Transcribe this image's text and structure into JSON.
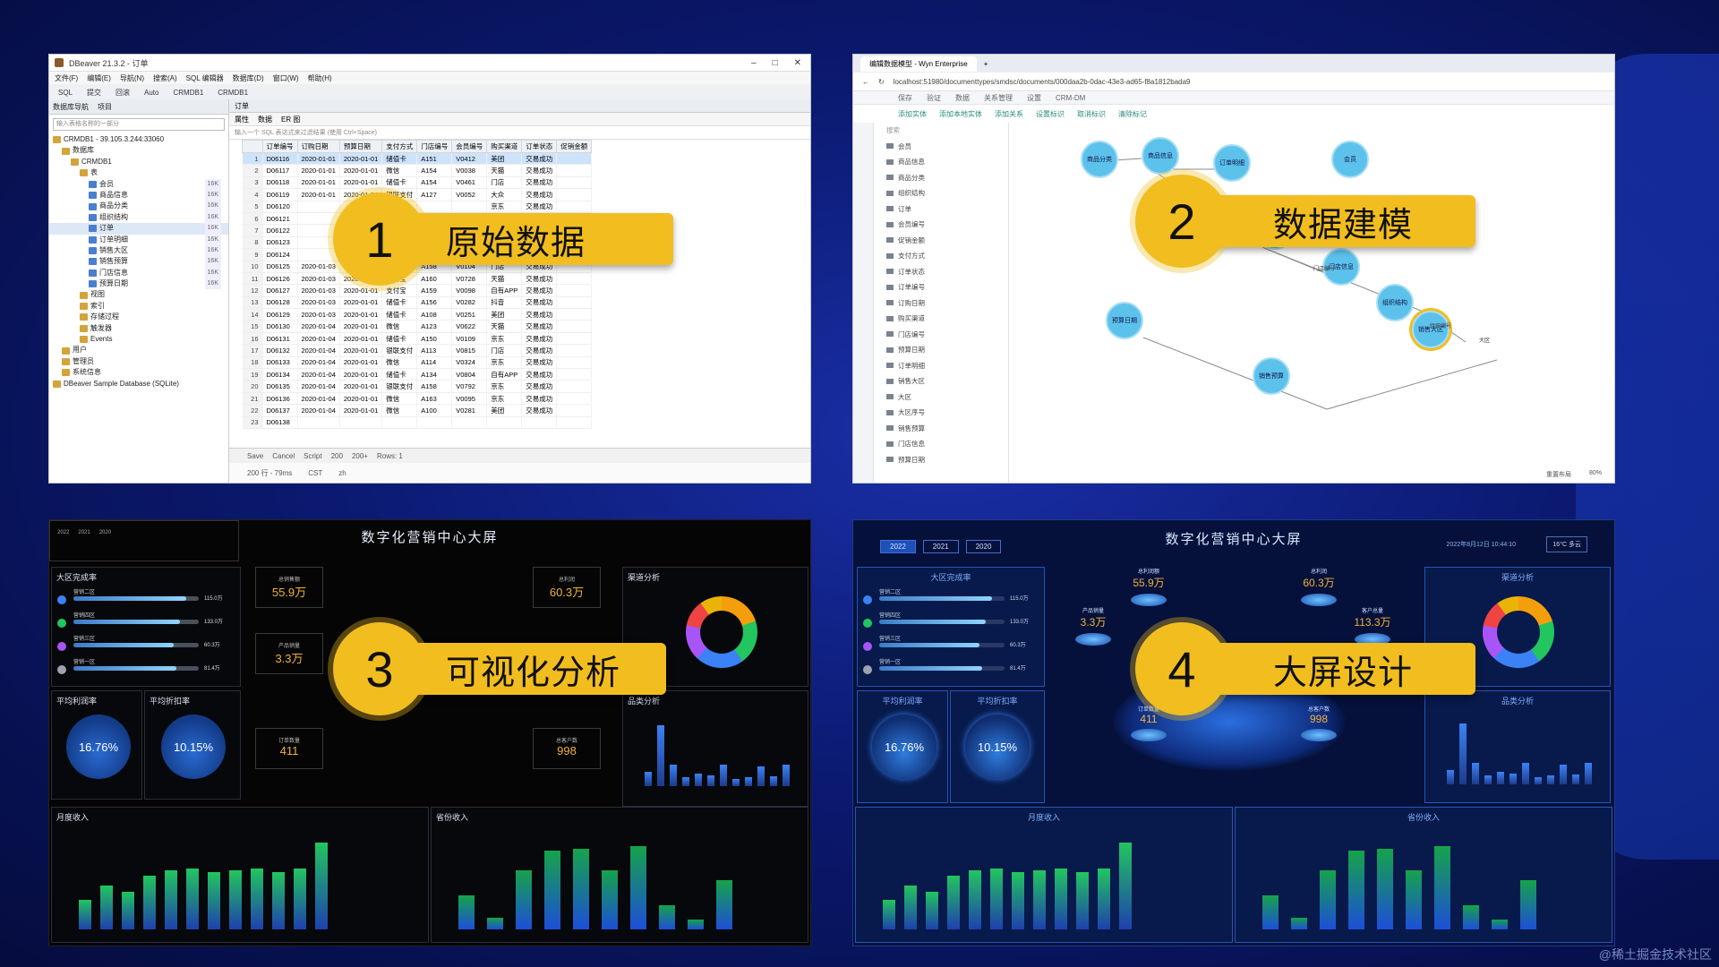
{
  "badges": [
    {
      "num": "1",
      "label": "原始数据"
    },
    {
      "num": "2",
      "label": "数据建模"
    },
    {
      "num": "3",
      "label": "可视化分析"
    },
    {
      "num": "4",
      "label": "大屏设计"
    }
  ],
  "dbeaver": {
    "title": "DBeaver 21.3.2 - 订单",
    "menu": [
      "文件(F)",
      "编辑(E)",
      "导航(N)",
      "搜索(A)",
      "SQL 编辑器",
      "数据库(D)",
      "窗口(W)",
      "帮助(H)"
    ],
    "toolbar": [
      "SQL",
      "提交",
      "回滚",
      "Auto",
      "CRMDB1",
      "CRMDB1"
    ],
    "nav_tabs": [
      "数据库导航",
      "项目"
    ],
    "nav_filter": "输入表格名称的一部分",
    "tree": [
      {
        "t": "CRMDB1 - 39.105.3.244:33060",
        "lvl": 0
      },
      {
        "t": "数据库",
        "lvl": 1
      },
      {
        "t": "CRMDB1",
        "lvl": 2
      },
      {
        "t": "表",
        "lvl": 3
      },
      {
        "t": "会员",
        "lvl": 4,
        "sz": "16K"
      },
      {
        "t": "商品信息",
        "lvl": 4,
        "sz": "16K"
      },
      {
        "t": "商品分类",
        "lvl": 4,
        "sz": "16K"
      },
      {
        "t": "组织结构",
        "lvl": 4,
        "sz": "16K"
      },
      {
        "t": "订单",
        "lvl": 4,
        "sz": "16K"
      },
      {
        "t": "订单明细",
        "lvl": 4,
        "sz": "16K"
      },
      {
        "t": "销售大区",
        "lvl": 4,
        "sz": "16K"
      },
      {
        "t": "销售预算",
        "lvl": 4,
        "sz": "16K"
      },
      {
        "t": "门店信息",
        "lvl": 4,
        "sz": "16K"
      },
      {
        "t": "预算日期",
        "lvl": 4,
        "sz": "16K"
      },
      {
        "t": "视图",
        "lvl": 3
      },
      {
        "t": "索引",
        "lvl": 3
      },
      {
        "t": "存储过程",
        "lvl": 3
      },
      {
        "t": "触发器",
        "lvl": 3
      },
      {
        "t": "Events",
        "lvl": 3
      },
      {
        "t": "用户",
        "lvl": 1
      },
      {
        "t": "管理员",
        "lvl": 1
      },
      {
        "t": "系统信息",
        "lvl": 1
      },
      {
        "t": "DBeaver Sample Database (SQLite)",
        "lvl": 0
      }
    ],
    "grid_tabs": [
      "订单"
    ],
    "grid_sub": [
      "属性",
      "数据",
      "ER 图"
    ],
    "filter_placeholder": "输入一个 SQL 表达式来过滤结果 (使用 Ctrl+Space)",
    "columns": [
      "订单编号",
      "订购日期",
      "预算日期",
      "支付方式",
      "门店编号",
      "会员编号",
      "购买渠道",
      "订单状态",
      "促销金额"
    ],
    "rows": [
      [
        "D06116",
        "2020-01-01",
        "2020-01-01",
        "储值卡",
        "A151",
        "V0412",
        "美团",
        "交易成功"
      ],
      [
        "D06117",
        "2020-01-01",
        "2020-01-01",
        "微信",
        "A154",
        "V0038",
        "天猫",
        "交易成功"
      ],
      [
        "D06118",
        "2020-01-01",
        "2020-01-01",
        "储值卡",
        "A154",
        "V0461",
        "门店",
        "交易成功"
      ],
      [
        "D06119",
        "2020-01-01",
        "2020-01-01",
        "银联支付",
        "A127",
        "V0052",
        "大众",
        "交易成功"
      ],
      [
        "D06120",
        "",
        "",
        "",
        "",
        "",
        "京东",
        "交易成功"
      ],
      [
        "D06121",
        "",
        "",
        "",
        "",
        "",
        "美团",
        "交易成功"
      ],
      [
        "D06122",
        "",
        "",
        "",
        "",
        "",
        "京东",
        "交易成功"
      ],
      [
        "D06123",
        "",
        "",
        "",
        "",
        "",
        "门店",
        "交易成功"
      ],
      [
        "D06124",
        "",
        "",
        "",
        "",
        "",
        "自有APP",
        "交易成功"
      ],
      [
        "D06125",
        "2020-01-03",
        "2020-01-01",
        "支付宝",
        "A158",
        "V0104",
        "门店",
        "交易成功"
      ],
      [
        "D06126",
        "2020-01-03",
        "2020-01-01",
        "支付宝",
        "A160",
        "V0728",
        "天猫",
        "交易成功"
      ],
      [
        "D06127",
        "2020-01-03",
        "2020-01-01",
        "支付宝",
        "A159",
        "V0098",
        "自有APP",
        "交易成功"
      ],
      [
        "D06128",
        "2020-01-03",
        "2020-01-01",
        "储值卡",
        "A156",
        "V0282",
        "抖音",
        "交易成功"
      ],
      [
        "D06129",
        "2020-01-03",
        "2020-01-01",
        "储值卡",
        "A108",
        "V0251",
        "美团",
        "交易成功"
      ],
      [
        "D06130",
        "2020-01-04",
        "2020-01-01",
        "微信",
        "A123",
        "V0622",
        "天猫",
        "交易成功"
      ],
      [
        "D06131",
        "2020-01-04",
        "2020-01-01",
        "储值卡",
        "A150",
        "V0109",
        "京东",
        "交易成功"
      ],
      [
        "D06132",
        "2020-01-04",
        "2020-01-01",
        "银联支付",
        "A113",
        "V0815",
        "门店",
        "交易成功"
      ],
      [
        "D06133",
        "2020-01-04",
        "2020-01-01",
        "微信",
        "A114",
        "V0324",
        "京东",
        "交易成功"
      ],
      [
        "D06134",
        "2020-01-04",
        "2020-01-01",
        "储值卡",
        "A134",
        "V0804",
        "自有APP",
        "交易成功"
      ],
      [
        "D06135",
        "2020-01-04",
        "2020-01-01",
        "银联支付",
        "A158",
        "V0792",
        "京东",
        "交易成功"
      ],
      [
        "D06136",
        "2020-01-04",
        "2020-01-01",
        "微信",
        "A163",
        "V0095",
        "京东",
        "交易成功"
      ],
      [
        "D06137",
        "2020-01-04",
        "2020-01-01",
        "微信",
        "A100",
        "V0281",
        "美团",
        "交易成功"
      ],
      [
        "D06138",
        "",
        "",
        "",
        "",
        "",
        "",
        ""
      ]
    ],
    "status": [
      "Save",
      "Cancel",
      "Script",
      "200",
      "200+",
      "Rows: 1"
    ],
    "status2": [
      "200 行 - 79ms",
      "CST",
      "zh"
    ]
  },
  "wyn": {
    "tab": "编辑数据模型 - Wyn Enterprise",
    "url": "localhost:51980/documenttypes/smdsc/documents/000daa2b-0dac-43e3-ad65-f8a1812bada9",
    "top": [
      "保存",
      "验证",
      "数据",
      "关系管理",
      "设置",
      "CRM-DM"
    ],
    "tools": [
      "添加实体",
      "添加本地实体",
      "添加关系",
      "设置标识",
      "取消标识",
      "清除标记"
    ],
    "side": [
      "会员",
      "商品信息",
      "商品分类",
      "组织结构",
      "订单",
      "会员编号",
      "促销金额",
      "支付方式",
      "订单状态",
      "订单编号",
      "订购日期",
      "购买渠道",
      "门店编号",
      "预算日期",
      "订单明细",
      "销售大区",
      "大区",
      "大区序号",
      "销售预算",
      "门店信息",
      "预算日期"
    ],
    "search_placeholder": "搜索",
    "nodes": [
      "商品分类",
      "商品信息",
      "订单明细",
      "会员",
      "订单",
      "门店信息",
      "组织结构",
      "预算日期",
      "销售大区",
      "销售预算"
    ],
    "edge_labels": [
      "门店编号",
      "组织编号",
      "大区",
      "0..1",
      "N"
    ],
    "footer": [
      "重置布局",
      "80%"
    ]
  },
  "dash3": {
    "title": "数字化营销中心大屏",
    "years": [
      "2022",
      "2021",
      "2020"
    ],
    "region_title": "大区完成率",
    "regions": [
      {
        "name": "营销二区",
        "val": "115.0万",
        "pct": 0.9,
        "color": "#3b82f6"
      },
      {
        "name": "营销四区",
        "val": "133.0万",
        "pct": 0.85,
        "color": "#22c55e"
      },
      {
        "name": "营销三区",
        "val": "60.3万",
        "pct": 0.8,
        "color": "#a855f7"
      },
      {
        "name": "营销一区",
        "val": "81.4万",
        "pct": 0.82,
        "color": "#9ca3af"
      }
    ],
    "kpis": [
      {
        "cap": "总销售额",
        "val": "55.9万"
      },
      {
        "cap": "总利润",
        "val": "60.3万"
      },
      {
        "cap": "产品销量",
        "val": "3.3万"
      },
      {
        "cap": "订单数量",
        "val": "411"
      },
      {
        "cap": "总客户数",
        "val": "998"
      }
    ],
    "profit_title": "平均利润率",
    "profit_val": "16.76%",
    "discount_title": "平均折扣率",
    "discount_val": "10.15%",
    "channel_title": "渠道分析",
    "category_title": "品类分析",
    "monthly_title": "月度收入",
    "province_title": "省份收入"
  },
  "dash4": {
    "title": "数字化营销中心大屏",
    "years": [
      "2022",
      "2021",
      "2020"
    ],
    "date": "2022年8月12日 10:44:10",
    "weather": "16°C 多云",
    "region_title": "大区完成率",
    "kpis": [
      {
        "cap": "总利润额",
        "val": "55.9万"
      },
      {
        "cap": "总利润",
        "val": "60.3万"
      },
      {
        "cap": "产品销量",
        "val": "3.3万"
      },
      {
        "cap": "客户总量",
        "val": "113.3万"
      },
      {
        "cap": "订单数量",
        "val": "411"
      },
      {
        "cap": "总客户数",
        "val": "998"
      }
    ],
    "profit_title": "平均利润率",
    "profit_val": "16.76%",
    "discount_title": "平均折扣率",
    "discount_val": "10.15%",
    "channel_title": "渠道分析",
    "category_title": "品类分析",
    "monthly_title": "月度收入",
    "province_title": "省份收入"
  },
  "watermark": "@稀土掘金技术社区"
}
